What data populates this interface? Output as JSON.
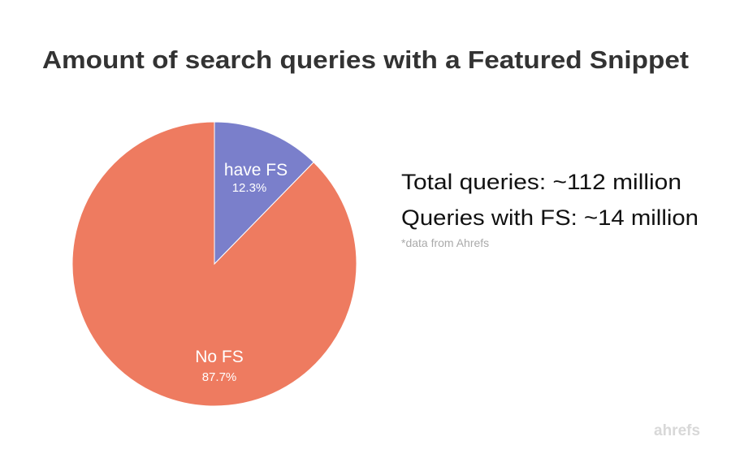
{
  "chart_data": {
    "type": "pie",
    "title": "Amount of search queries with a Featured Snippet",
    "slices": [
      {
        "label": "have FS",
        "value": 12.3,
        "value_label": "12.3%",
        "color": "#7a7fcb"
      },
      {
        "label": "No FS",
        "value": 87.7,
        "value_label": "87.7%",
        "color": "#ee7b60"
      }
    ],
    "start_angle": "12 o'clock, clockwise",
    "legend": "none"
  },
  "annotations": {
    "total": "Total queries: ~112 million",
    "with_fs": "Queries with FS: ~14 million",
    "source": "*data from Ahrefs"
  },
  "logo": "ahrefs"
}
